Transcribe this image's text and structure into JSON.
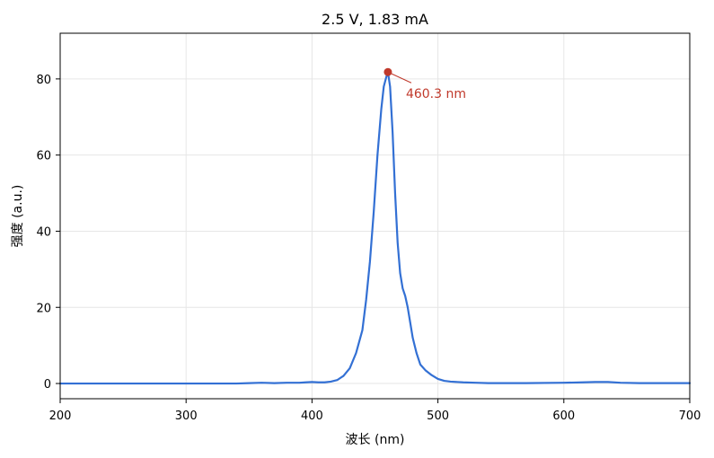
{
  "chart_data": {
    "type": "line",
    "title": "2.5 V, 1.83 mA",
    "xlabel": "波长 (nm)",
    "ylabel": "强度 (a.u.)",
    "xlim": [
      200,
      700
    ],
    "ylim": [
      -4,
      92
    ],
    "x_ticks": [
      200,
      300,
      400,
      500,
      600,
      700
    ],
    "y_ticks": [
      0,
      20,
      40,
      60,
      80
    ],
    "grid": true,
    "series": [
      {
        "color": "#3370d4",
        "x": [
          200,
          250,
          300,
          340,
          350,
          360,
          370,
          380,
          390,
          395,
          400,
          405,
          410,
          415,
          420,
          425,
          430,
          435,
          440,
          443,
          446,
          449,
          452,
          455,
          457,
          459,
          460.3,
          462,
          464,
          466,
          468,
          470,
          472,
          474,
          476,
          478,
          480,
          483,
          486,
          490,
          495,
          500,
          505,
          510,
          520,
          530,
          540,
          550,
          570,
          600,
          615,
          625,
          635,
          645,
          660,
          700
        ],
        "y": [
          0,
          0,
          0,
          0,
          0.1,
          0.2,
          0.1,
          0.2,
          0.2,
          0.3,
          0.4,
          0.3,
          0.3,
          0.5,
          0.9,
          2.0,
          4.0,
          8.0,
          14.0,
          22.0,
          32.0,
          45.0,
          60.0,
          72.0,
          78.0,
          80.5,
          81.8,
          78.0,
          66.0,
          50.0,
          37.0,
          29.0,
          25.0,
          23.0,
          20.0,
          16.0,
          12.0,
          8.0,
          5.0,
          3.5,
          2.2,
          1.2,
          0.7,
          0.5,
          0.3,
          0.2,
          0.1,
          0.1,
          0.1,
          0.2,
          0.3,
          0.4,
          0.4,
          0.2,
          0.1,
          0.1
        ]
      }
    ],
    "peak": {
      "x": 460.3,
      "y": 81.8,
      "label": "460.3 nm",
      "color": "#c0392b"
    }
  }
}
